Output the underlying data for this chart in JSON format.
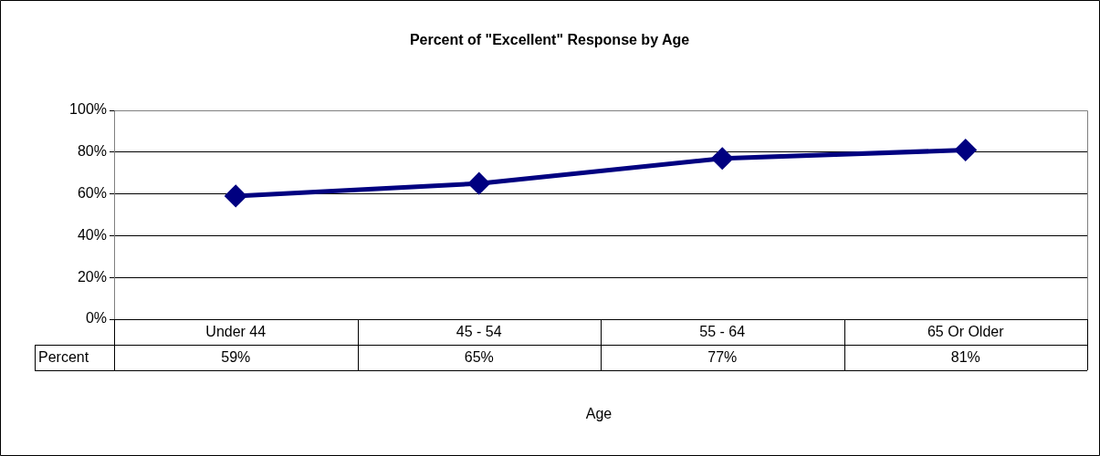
{
  "chart_data": {
    "type": "line",
    "title": "Percent of \"Excellent\" Response by Age",
    "xlabel": "Age",
    "categories": [
      "Under 44",
      "45 - 54",
      "55 - 64",
      "65 Or Older"
    ],
    "series": [
      {
        "name": "Percent",
        "color": "#000080",
        "values": [
          59,
          65,
          77,
          81
        ],
        "value_labels": [
          "59%",
          "65%",
          "77%",
          "81%"
        ]
      }
    ],
    "ylim": [
      0,
      100
    ],
    "yticks": [
      {
        "value": 0,
        "label": "0%"
      },
      {
        "value": 20,
        "label": "20%"
      },
      {
        "value": 40,
        "label": "40%"
      },
      {
        "value": 60,
        "label": "60%"
      },
      {
        "value": 80,
        "label": "80%"
      },
      {
        "value": 100,
        "label": "100%"
      }
    ],
    "grid": "y",
    "legend": false,
    "marker": "diamond",
    "line_style": "solid"
  }
}
